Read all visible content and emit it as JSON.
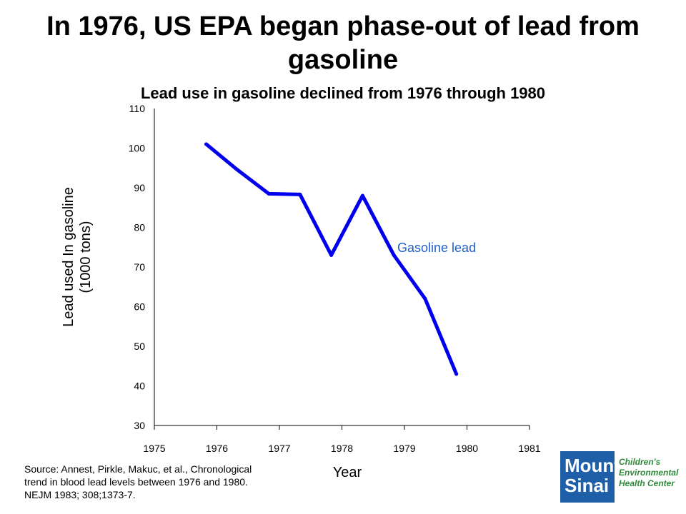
{
  "title": "In 1976, US EPA began phase-out of lead from gasoline",
  "subtitle": "Lead use in gasoline declined from 1976 through 1980",
  "source": {
    "line1": "Source:  Annest, Pirkle, Makuc, et al., Chronological",
    "line2": "trend in blood lead levels between 1976 and 1980.",
    "line3": "NEJM 1983; 308;1373-7."
  },
  "logo": {
    "line1": "Mount",
    "line2": "Sinai",
    "tag1": "Children's",
    "tag2": "Environmental",
    "tag3": "Health Center",
    "color": "#1f5fa8",
    "tag_color": "#2f8a3a"
  },
  "chart_data": {
    "type": "line",
    "title": "Lead use in gasoline declined from 1976 through 1980",
    "xlabel": "Year",
    "ylabel_line1": "Lead used In gasoline",
    "ylabel_line2": "(1000 tons)",
    "xlim": [
      1975,
      1981
    ],
    "ylim": [
      30,
      110
    ],
    "xticks": [
      "1975",
      "1976",
      "1977",
      "1978",
      "1979",
      "1980",
      "1981"
    ],
    "yticks": [
      "30",
      "40",
      "50",
      "60",
      "70",
      "80",
      "90",
      "100",
      "110"
    ],
    "grid": false,
    "series": [
      {
        "name": "Gasoline lead",
        "color": "#0000ee",
        "x": [
          1975.83,
          1976.33,
          1976.83,
          1977.33,
          1977.83,
          1978.33,
          1978.83,
          1979.33,
          1979.83
        ],
        "y": [
          101,
          94.5,
          88.5,
          88.3,
          73,
          88,
          73,
          62,
          43
        ]
      }
    ],
    "series_label_position": "right of line near 1979"
  }
}
